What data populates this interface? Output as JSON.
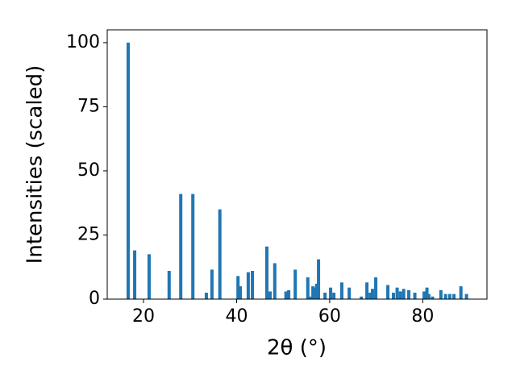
{
  "chart_data": {
    "type": "bar",
    "xlabel": "2θ (°)",
    "ylabel": "Intensities (scaled)",
    "color": "#1f77b4",
    "x": [
      16.7,
      18.1,
      21.2,
      25.5,
      28.0,
      30.6,
      33.5,
      34.7,
      36.4,
      40.3,
      40.8,
      42.5,
      43.4,
      46.5,
      47.2,
      48.2,
      50.6,
      51.2,
      52.6,
      55.3,
      55.8,
      56.4,
      56.9,
      57.2,
      57.6,
      59.0,
      60.2,
      60.9,
      62.6,
      64.2,
      66.8,
      68.0,
      68.7,
      69.2,
      69.9,
      72.5,
      73.7,
      74.5,
      75.2,
      75.9,
      77.0,
      78.3,
      80.3,
      80.9,
      81.3,
      82.1,
      83.9,
      84.9,
      85.8,
      86.7,
      88.2,
      89.4
    ],
    "values": [
      100,
      19,
      17.5,
      11,
      41,
      41,
      2.5,
      11.5,
      35,
      9,
      5,
      10.5,
      11,
      20.5,
      3,
      14,
      3,
      3.5,
      11.5,
      8.5,
      1,
      5,
      4.5,
      6,
      15.5,
      2.5,
      4.5,
      2.5,
      6.5,
      4.5,
      1,
      6.5,
      2.5,
      4,
      8.5,
      5.5,
      2.5,
      4.5,
      3,
      4,
      3.5,
      2.5,
      3,
      4.5,
      2,
      1,
      3.5,
      2,
      2,
      2,
      5,
      2
    ],
    "xlim": [
      12.2,
      93.8
    ],
    "ylim": [
      0,
      105
    ],
    "xticks": [
      20,
      40,
      60,
      80
    ],
    "yticks": [
      0,
      25,
      50,
      75,
      100
    ]
  }
}
